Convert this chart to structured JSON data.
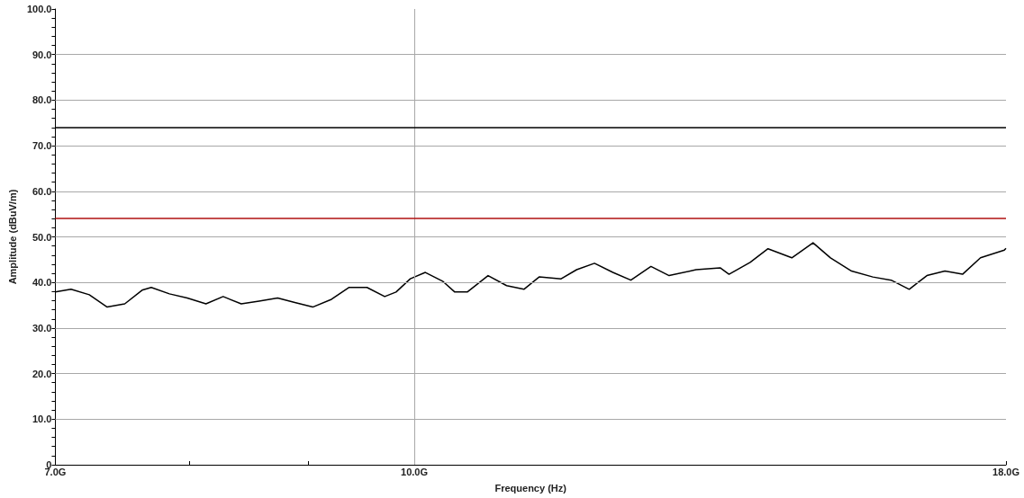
{
  "chart_data": {
    "type": "line",
    "xlabel": "Frequency (Hz)",
    "ylabel": "Amplitude (dBuV/m)",
    "log": "x",
    "grid": true,
    "marker": "none",
    "line_style": "solid",
    "xlim": [
      7,
      18
    ],
    "xticks": [
      {
        "value": 7,
        "label": "7.0G"
      },
      {
        "value": 8,
        "label": null
      },
      {
        "value": 9,
        "label": null
      },
      {
        "value": 10,
        "label": "10.0G"
      },
      {
        "value": 18,
        "label": "18.0G"
      }
    ],
    "ylim": [
      0,
      100
    ],
    "yticks": [
      0,
      {
        "value": 2,
        "label": null
      },
      {
        "value": 4,
        "label": null
      },
      {
        "value": 6,
        "label": null
      },
      {
        "value": 8,
        "label": null
      },
      {
        "value": 10,
        "label": "10.0"
      },
      {
        "value": 12,
        "label": null
      },
      {
        "value": 14,
        "label": null
      },
      {
        "value": 16,
        "label": null
      },
      {
        "value": 18,
        "label": null
      },
      {
        "value": 20,
        "label": "20.0"
      },
      {
        "value": 22,
        "label": null
      },
      {
        "value": 24,
        "label": null
      },
      {
        "value": 26,
        "label": null
      },
      {
        "value": 28,
        "label": null
      },
      {
        "value": 30,
        "label": "30.0"
      },
      {
        "value": 32,
        "label": null
      },
      {
        "value": 34,
        "label": null
      },
      {
        "value": 36,
        "label": null
      },
      {
        "value": 38,
        "label": null
      },
      {
        "value": 40,
        "label": "40.0"
      },
      {
        "value": 42,
        "label": null
      },
      {
        "value": 44,
        "label": null
      },
      {
        "value": 46,
        "label": null
      },
      {
        "value": 48,
        "label": null
      },
      {
        "value": 50,
        "label": "50.0"
      },
      {
        "value": 52,
        "label": null
      },
      {
        "value": 54,
        "label": null
      },
      {
        "value": 56,
        "label": null
      },
      {
        "value": 58,
        "label": null
      },
      {
        "value": 60,
        "label": "60.0"
      },
      {
        "value": 62,
        "label": null
      },
      {
        "value": 64,
        "label": null
      },
      {
        "value": 66,
        "label": null
      },
      {
        "value": 68,
        "label": null
      },
      {
        "value": 70,
        "label": "70.0"
      },
      {
        "value": 72,
        "label": null
      },
      {
        "value": 74,
        "label": null
      },
      {
        "value": 76,
        "label": null
      },
      {
        "value": 78,
        "label": null
      },
      {
        "value": 80,
        "label": "80.0"
      },
      {
        "value": 82,
        "label": null
      },
      {
        "value": 84,
        "label": null
      },
      {
        "value": 86,
        "label": null
      },
      {
        "value": 88,
        "label": null
      },
      {
        "value": 90,
        "label": "90.0"
      },
      {
        "value": 92,
        "label": null
      },
      {
        "value": 94,
        "label": null
      },
      {
        "value": 96,
        "label": null
      },
      {
        "value": 98,
        "label": null
      },
      {
        "value": 100,
        "label": "100.0"
      }
    ],
    "ref_lines": [
      {
        "axis": "y",
        "value": 74,
        "color": "#000000"
      },
      {
        "axis": "y",
        "value": 54,
        "color": "#b01010"
      }
    ],
    "series": [
      {
        "color": "#000000",
        "x": [
          7.0,
          7.11,
          7.24,
          7.37,
          7.5,
          7.63,
          7.7,
          7.84,
          7.98,
          8.13,
          8.27,
          8.42,
          8.57,
          8.73,
          8.88,
          9.04,
          9.21,
          9.37,
          9.54,
          9.71,
          9.82,
          9.96,
          10.11,
          10.29,
          10.41,
          10.54,
          10.76,
          10.96,
          11.15,
          11.32,
          11.57,
          11.75,
          11.96,
          12.18,
          12.4,
          12.65,
          12.88,
          13.23,
          13.55,
          13.67,
          13.96,
          14.21,
          14.55,
          14.86,
          15.12,
          15.44,
          15.77,
          16.06,
          16.35,
          16.64,
          16.94,
          17.24,
          17.55,
          17.97,
          18.0
        ],
        "values": [
          37.9,
          38.5,
          37.3,
          34.6,
          35.3,
          38.3,
          38.9,
          37.5,
          36.6,
          35.3,
          36.9,
          35.3,
          35.9,
          36.6,
          35.6,
          34.6,
          36.3,
          38.9,
          38.9,
          36.9,
          37.9,
          40.8,
          42.2,
          40.2,
          37.9,
          37.9,
          41.5,
          39.3,
          38.5,
          41.2,
          40.8,
          42.8,
          44.2,
          42.2,
          40.5,
          43.5,
          41.5,
          42.8,
          43.2,
          41.8,
          44.4,
          47.4,
          45.4,
          48.7,
          45.4,
          42.5,
          41.2,
          40.5,
          38.5,
          41.5,
          42.5,
          41.8,
          45.4,
          47.1,
          47.5
        ]
      }
    ]
  }
}
